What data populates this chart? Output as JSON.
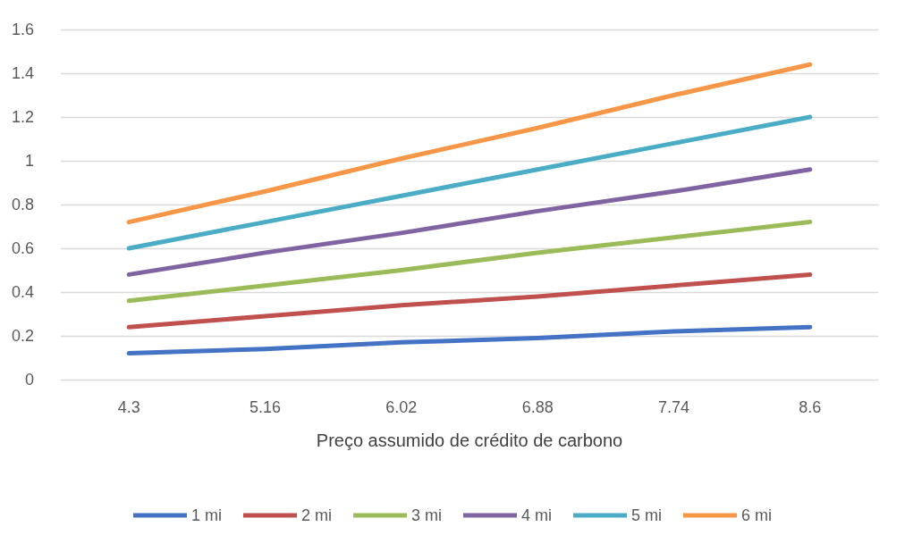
{
  "chart_data": {
    "type": "line",
    "xlabel": "Preço assumido de crédito de carbono",
    "categories": [
      "4.3",
      "5.16",
      "6.02",
      "6.88",
      "7.74",
      "8.6"
    ],
    "series": [
      {
        "name": "1 mi",
        "color": "#4472c4",
        "values": [
          0.12,
          0.14,
          0.17,
          0.19,
          0.22,
          0.24
        ]
      },
      {
        "name": "2 mi",
        "color": "#c0504d",
        "values": [
          0.24,
          0.29,
          0.34,
          0.38,
          0.43,
          0.48
        ]
      },
      {
        "name": "3 mi",
        "color": "#9bbb59",
        "values": [
          0.36,
          0.43,
          0.5,
          0.58,
          0.65,
          0.72
        ]
      },
      {
        "name": "4 mi",
        "color": "#8064a2",
        "values": [
          0.48,
          0.58,
          0.67,
          0.77,
          0.86,
          0.96
        ]
      },
      {
        "name": "5 mi",
        "color": "#4bacc6",
        "values": [
          0.6,
          0.72,
          0.84,
          0.96,
          1.08,
          1.2
        ]
      },
      {
        "name": "6 mi",
        "color": "#f79646",
        "values": [
          0.72,
          0.86,
          1.01,
          1.15,
          1.3,
          1.44
        ]
      }
    ],
    "ylim": [
      0,
      1.6
    ],
    "yticks": [
      0,
      0.2,
      0.4,
      0.6,
      0.8,
      1,
      1.2,
      1.4,
      1.6
    ],
    "grid": "y",
    "legend": "bottom",
    "marker": "none",
    "line_style": "solid"
  }
}
